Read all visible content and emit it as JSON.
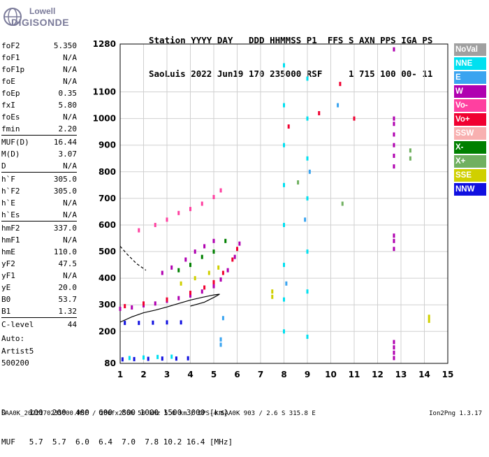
{
  "logo": {
    "top": "Lowell",
    "bottom": "DIGISONDE"
  },
  "header": {
    "line1": "Station YYYY DAY   DDD HHMMSS P1  FFS S AXN PPS IGA PS",
    "line2": "SaoLuis 2022 Jun19 170 235000 RSF     1 715 100 00- 11"
  },
  "params": [
    {
      "name": "foF2",
      "value": "5.350"
    },
    {
      "name": "foF1",
      "value": "N/A"
    },
    {
      "name": "foF1p",
      "value": "N/A"
    },
    {
      "name": "foE",
      "value": "N/A"
    },
    {
      "name": "foEp",
      "value": "0.35"
    },
    {
      "name": "fxI",
      "value": "5.80"
    },
    {
      "name": "foEs",
      "value": "N/A"
    },
    {
      "name": "fmin",
      "value": "2.20"
    },
    {
      "name": "MUF(D)",
      "value": "16.44"
    },
    {
      "name": "M(D)",
      "value": "3.07"
    },
    {
      "name": "D",
      "value": "N/A"
    },
    {
      "name": "h`F",
      "value": "305.0"
    },
    {
      "name": "h`F2",
      "value": "305.0"
    },
    {
      "name": "h`E",
      "value": "N/A"
    },
    {
      "name": "h`Es",
      "value": "N/A"
    },
    {
      "name": "hmF2",
      "value": "337.0"
    },
    {
      "name": "hmF1",
      "value": "N/A"
    },
    {
      "name": "hmE",
      "value": "110.0"
    },
    {
      "name": "yF2",
      "value": "47.5"
    },
    {
      "name": "yF1",
      "value": "N/A"
    },
    {
      "name": "yE",
      "value": "20.0"
    },
    {
      "name": "B0",
      "value": "53.7"
    },
    {
      "name": "B1",
      "value": "1.32"
    },
    {
      "name": "C-level",
      "value": "44"
    }
  ],
  "extra": {
    "auto": "Auto:",
    "artist": "Artist5",
    "version": "500200"
  },
  "legend": [
    {
      "label": "NoVal",
      "color": "#a0a0a0"
    },
    {
      "label": "NNE",
      "color": "#00e0f0"
    },
    {
      "label": "E",
      "color": "#3aa4f0"
    },
    {
      "label": "W",
      "color": "#b000b0"
    },
    {
      "label": "Vo-",
      "color": "#ff40a0"
    },
    {
      "label": "Vo+",
      "color": "#f00030"
    },
    {
      "label": "SSW",
      "color": "#f8b0b0"
    },
    {
      "label": "X-",
      "color": "#008000"
    },
    {
      "label": "X+",
      "color": "#70b060"
    },
    {
      "label": "SSE",
      "color": "#d0d000"
    },
    {
      "label": "NNW",
      "color": "#1010e0"
    }
  ],
  "bottom": {
    "row1": "D     100  200  400  600  800 1000 1500 3000 [km]",
    "row2": "MUF   5.7  5.7  6.0  6.4  7.0  7.8 10.2 16.4 [MHz]"
  },
  "footer": {
    "left": "SAA0K_2022170235000.RSF / 280fx256h 50 kHz 5.0 km / DPS-4 SAA0K 903 / 2.6 S 315.8 E",
    "right": "Ion2Png 1.3.17"
  },
  "chart_data": {
    "type": "scatter",
    "xlim": [
      1,
      15
    ],
    "ylim": [
      80,
      1280
    ],
    "xticks": [
      1,
      2,
      3,
      4,
      5,
      6,
      7,
      8,
      9,
      10,
      11,
      12,
      13,
      14,
      15
    ],
    "yticks": [
      80,
      200,
      300,
      400,
      500,
      600,
      700,
      800,
      900,
      1000,
      1100,
      1280
    ],
    "grid": true,
    "series": [
      {
        "color": "#b000b0",
        "points": [
          [
            1.0,
            285
          ],
          [
            1.5,
            290
          ],
          [
            2.0,
            298
          ],
          [
            2.5,
            305
          ],
          [
            3.0,
            315
          ],
          [
            3.5,
            325
          ],
          [
            4.0,
            335
          ],
          [
            4.5,
            350
          ],
          [
            5.0,
            370
          ],
          [
            5.3,
            395
          ],
          [
            5.6,
            430
          ],
          [
            5.9,
            480
          ],
          [
            6.1,
            530
          ]
        ]
      },
      {
        "color": "#f00030",
        "points": [
          [
            1.2,
            295
          ],
          [
            2.0,
            305
          ],
          [
            3.0,
            320
          ],
          [
            4.0,
            345
          ],
          [
            4.6,
            365
          ],
          [
            5.0,
            385
          ],
          [
            5.4,
            420
          ],
          [
            5.8,
            470
          ],
          [
            6.0,
            510
          ]
        ]
      },
      {
        "color": "#ff40a0",
        "points": [
          [
            1.8,
            580
          ],
          [
            2.5,
            600
          ],
          [
            3.0,
            620
          ],
          [
            3.5,
            645
          ],
          [
            4.0,
            660
          ],
          [
            4.5,
            680
          ],
          [
            5.0,
            705
          ],
          [
            5.3,
            730
          ]
        ]
      },
      {
        "color": "#b000b0",
        "points": [
          [
            2.8,
            420
          ],
          [
            3.2,
            440
          ],
          [
            3.8,
            470
          ],
          [
            4.2,
            500
          ],
          [
            4.6,
            520
          ],
          [
            5.0,
            540
          ]
        ]
      },
      {
        "color": "#008000",
        "points": [
          [
            3.5,
            430
          ],
          [
            4.0,
            450
          ],
          [
            4.5,
            480
          ],
          [
            5.0,
            500
          ],
          [
            5.5,
            540
          ]
        ]
      },
      {
        "color": "#d0d000",
        "points": [
          [
            3.6,
            380
          ],
          [
            4.2,
            400
          ],
          [
            4.8,
            420
          ],
          [
            5.2,
            440
          ]
        ]
      },
      {
        "color": "#1010e0",
        "points": [
          [
            1.2,
            232
          ],
          [
            1.8,
            232
          ],
          [
            2.4,
            233
          ],
          [
            3.0,
            234
          ],
          [
            3.6,
            234
          ]
        ]
      },
      {
        "color": "#1010e0",
        "points": [
          [
            1.1,
            95
          ],
          [
            1.6,
            96
          ],
          [
            2.2,
            97
          ],
          [
            2.8,
            98
          ],
          [
            3.4,
            98
          ],
          [
            3.9,
            99
          ]
        ]
      },
      {
        "color": "#00e0f0",
        "points": [
          [
            1.4,
            100
          ],
          [
            2.0,
            102
          ],
          [
            2.6,
            104
          ],
          [
            3.2,
            105
          ]
        ]
      },
      {
        "color": "#b000b0",
        "points": [
          [
            12.7,
            820
          ],
          [
            12.7,
            860
          ],
          [
            12.7,
            900
          ],
          [
            12.7,
            940
          ],
          [
            12.7,
            980
          ],
          [
            12.7,
            1000
          ],
          [
            12.7,
            510
          ],
          [
            12.7,
            540
          ],
          [
            12.7,
            560
          ],
          [
            12.7,
            100
          ],
          [
            12.7,
            120
          ],
          [
            12.7,
            140
          ],
          [
            12.7,
            160
          ],
          [
            12.7,
            1260
          ]
        ]
      },
      {
        "color": "#00e0f0",
        "points": [
          [
            8.0,
            200
          ],
          [
            8.0,
            320
          ],
          [
            8.0,
            450
          ],
          [
            8.0,
            600
          ],
          [
            8.0,
            750
          ],
          [
            8.0,
            900
          ],
          [
            8.0,
            1050
          ],
          [
            8.0,
            1200
          ],
          [
            9.0,
            180
          ],
          [
            9.0,
            350
          ],
          [
            9.0,
            500
          ],
          [
            9.0,
            700
          ],
          [
            9.0,
            850
          ],
          [
            9.0,
            1000
          ],
          [
            9.0,
            1150
          ]
        ]
      },
      {
        "color": "#d0d000",
        "points": [
          [
            14.2,
            240
          ],
          [
            14.2,
            255
          ],
          [
            7.5,
            330
          ],
          [
            7.5,
            350
          ]
        ]
      },
      {
        "color": "#3aa4f0",
        "points": [
          [
            5.3,
            150
          ],
          [
            5.3,
            170
          ],
          [
            5.4,
            250
          ],
          [
            8.1,
            380
          ],
          [
            8.9,
            620
          ],
          [
            9.1,
            800
          ],
          [
            10.3,
            1050
          ]
        ]
      },
      {
        "color": "#f00030",
        "points": [
          [
            9.5,
            1020
          ],
          [
            10.4,
            1130
          ],
          [
            11.0,
            1000
          ],
          [
            8.2,
            970
          ]
        ]
      },
      {
        "color": "#70b060",
        "points": [
          [
            13.4,
            880
          ],
          [
            13.4,
            850
          ],
          [
            10.5,
            680
          ],
          [
            8.6,
            760
          ]
        ]
      }
    ],
    "trace_solid": [
      [
        1.0,
        235
      ],
      [
        1.5,
        255
      ],
      [
        2.0,
        270
      ],
      [
        2.5,
        280
      ],
      [
        3.0,
        292
      ],
      [
        3.5,
        305
      ],
      [
        4.0,
        318
      ],
      [
        4.5,
        328
      ],
      [
        5.0,
        337
      ],
      [
        5.25,
        340
      ],
      [
        5.05,
        330
      ],
      [
        4.6,
        310
      ],
      [
        4.0,
        295
      ]
    ],
    "trace_dashed": [
      [
        1.0,
        520
      ],
      [
        1.3,
        490
      ],
      [
        1.7,
        455
      ],
      [
        2.1,
        430
      ]
    ]
  }
}
